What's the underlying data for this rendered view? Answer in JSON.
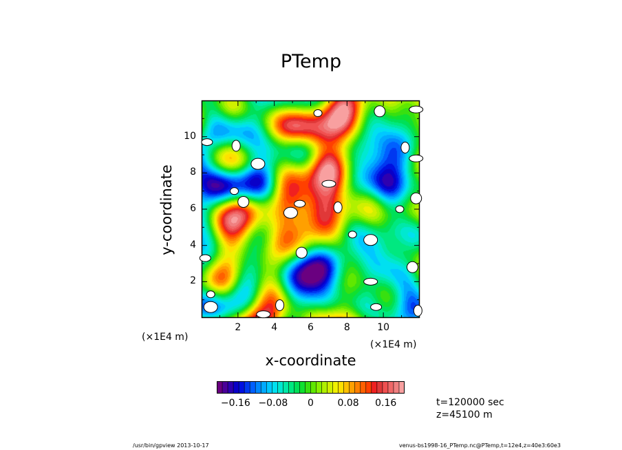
{
  "title": "PTemp",
  "footer_left": "/usr/bin/gpview   2013-10-17",
  "footer_right": "venus-bs1998-16_PTemp.nc@PTemp,t=12e4,z=40e3:60e3",
  "time_info": {
    "t": "t=120000 sec",
    "z": "z=45100  m"
  },
  "chart_data": {
    "type": "heatmap",
    "title": "PTemp",
    "xlabel": "x-coordinate",
    "ylabel": "y-coordinate",
    "x_multiplier": "(×1E4 m)",
    "y_multiplier": "(×1E4 m)",
    "xlim": [
      0,
      12
    ],
    "ylim": [
      0,
      12
    ],
    "x_ticks": [
      "2",
      "4",
      "6",
      "8",
      "10"
    ],
    "y_ticks": [
      "2",
      "4",
      "6",
      "8",
      "10"
    ],
    "colorbar": {
      "ticks": [
        "−0.16",
        "−0.08",
        "0",
        "0.08",
        "0.16"
      ],
      "min": -0.2,
      "max": 0.2,
      "colors": [
        "#6a0080",
        "#4b009a",
        "#2e00b0",
        "#0a00c8",
        "#0010e0",
        "#0038f0",
        "#0060ff",
        "#0088ff",
        "#00aaff",
        "#00c8ff",
        "#00e0f0",
        "#00e8d0",
        "#00e8a8",
        "#00e880",
        "#00e058",
        "#10e030",
        "#38e010",
        "#60e800",
        "#88f000",
        "#b0f000",
        "#d0f000",
        "#f0f000",
        "#ffe000",
        "#ffc000",
        "#ffa000",
        "#ff8000",
        "#ff6000",
        "#ff4000",
        "#f02020",
        "#e03838",
        "#f05050",
        "#f06868",
        "#f08080",
        "#f8a0a0"
      ]
    },
    "blobs": [
      {
        "x": 6.4,
        "y": 11.3,
        "v": 0.25
      },
      {
        "x": 9.8,
        "y": 11.4,
        "v": 0.25
      },
      {
        "x": 11.8,
        "y": 11.5,
        "v": 0.25
      },
      {
        "x": 1.9,
        "y": 9.5,
        "v": 0.25
      },
      {
        "x": 0.3,
        "y": 9.7,
        "v": 0.25
      },
      {
        "x": 3.1,
        "y": 8.5,
        "v": 0.25
      },
      {
        "x": 1.8,
        "y": 7.0,
        "v": 0.25
      },
      {
        "x": 2.3,
        "y": 6.4,
        "v": 0.25
      },
      {
        "x": 7.0,
        "y": 7.4,
        "v": 0.25
      },
      {
        "x": 7.5,
        "y": 6.1,
        "v": 0.25
      },
      {
        "x": 5.4,
        "y": 6.3,
        "v": 0.25
      },
      {
        "x": 4.9,
        "y": 5.8,
        "v": 0.25
      },
      {
        "x": 10.9,
        "y": 6.0,
        "v": 0.25
      },
      {
        "x": 11.8,
        "y": 6.6,
        "v": 0.25
      },
      {
        "x": 11.8,
        "y": 8.8,
        "v": 0.25
      },
      {
        "x": 11.2,
        "y": 9.4,
        "v": 0.25
      },
      {
        "x": 0.2,
        "y": 3.3,
        "v": 0.25
      },
      {
        "x": 9.3,
        "y": 4.3,
        "v": 0.25
      },
      {
        "x": 8.3,
        "y": 4.6,
        "v": 0.25
      },
      {
        "x": 11.6,
        "y": 2.8,
        "v": 0.25
      },
      {
        "x": 9.3,
        "y": 2.0,
        "v": 0.25
      },
      {
        "x": 4.3,
        "y": 0.7,
        "v": 0.25
      },
      {
        "x": 9.6,
        "y": 0.6,
        "v": 0.25
      },
      {
        "x": 0.5,
        "y": 0.6,
        "v": 0.25
      },
      {
        "x": 0.5,
        "y": 1.3,
        "v": 0.25
      },
      {
        "x": 5.5,
        "y": 3.6,
        "v": 0.25
      },
      {
        "x": 3.4,
        "y": 0.2,
        "v": 0.25
      },
      {
        "x": 11.9,
        "y": 0.4,
        "v": 0.25
      }
    ]
  }
}
